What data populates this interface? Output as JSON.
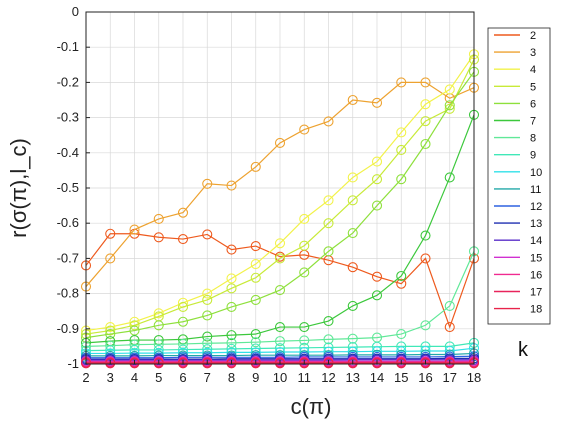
{
  "chart_data": {
    "type": "line",
    "xlabel": "c(π)",
    "ylabel": "r(σ(π),l_c)",
    "legend_title": "k",
    "legend_position": "right",
    "xlim": [
      2,
      18
    ],
    "ylim": [
      -1,
      0
    ],
    "x": [
      2,
      3,
      4,
      5,
      6,
      7,
      8,
      9,
      10,
      11,
      12,
      13,
      14,
      15,
      16,
      17,
      18
    ],
    "x_ticks": [
      2,
      3,
      4,
      5,
      6,
      7,
      8,
      9,
      10,
      11,
      12,
      13,
      14,
      15,
      16,
      17,
      18
    ],
    "y_ticks": [
      0,
      -0.1,
      -0.2,
      -0.3,
      -0.4,
      -0.5,
      -0.6,
      -0.7,
      -0.8,
      -0.9,
      -1
    ],
    "y_tick_labels": [
      "0",
      "-0.1",
      "-0.2",
      "-0.3",
      "-0.4",
      "-0.5",
      "-0.6",
      "-0.7",
      "-0.8",
      "-0.9",
      "-1"
    ],
    "grid": true,
    "marker": "open-circle",
    "series": [
      {
        "name": "2",
        "color": "#ee5a1e",
        "values": [
          -0.72,
          -0.63,
          -0.63,
          -0.64,
          -0.645,
          -0.632,
          -0.675,
          -0.665,
          -0.695,
          -0.69,
          -0.705,
          -0.725,
          -0.752,
          -0.772,
          -0.7,
          -0.895,
          -0.7
        ]
      },
      {
        "name": "3",
        "color": "#eda230",
        "values": [
          -0.78,
          -0.7,
          -0.618,
          -0.588,
          -0.57,
          -0.488,
          -0.493,
          -0.44,
          -0.372,
          -0.334,
          -0.311,
          -0.25,
          -0.258,
          -0.2,
          -0.2,
          -0.245,
          -0.215
        ]
      },
      {
        "name": "4",
        "color": "#f2f24a",
        "values": [
          -0.905,
          -0.895,
          -0.88,
          -0.856,
          -0.826,
          -0.8,
          -0.757,
          -0.716,
          -0.657,
          -0.588,
          -0.535,
          -0.47,
          -0.425,
          -0.342,
          -0.262,
          -0.22,
          -0.12
        ]
      },
      {
        "name": "5",
        "color": "#c8ea38",
        "values": [
          -0.915,
          -0.905,
          -0.89,
          -0.865,
          -0.838,
          -0.818,
          -0.785,
          -0.755,
          -0.7,
          -0.664,
          -0.6,
          -0.535,
          -0.475,
          -0.392,
          -0.31,
          -0.275,
          -0.135
        ]
      },
      {
        "name": "6",
        "color": "#8ee03c",
        "values": [
          -0.925,
          -0.915,
          -0.905,
          -0.89,
          -0.88,
          -0.862,
          -0.838,
          -0.818,
          -0.79,
          -0.74,
          -0.68,
          -0.628,
          -0.55,
          -0.475,
          -0.375,
          -0.265,
          -0.17
        ]
      },
      {
        "name": "7",
        "color": "#3cc83c",
        "values": [
          -0.94,
          -0.935,
          -0.932,
          -0.932,
          -0.93,
          -0.922,
          -0.918,
          -0.915,
          -0.895,
          -0.895,
          -0.878,
          -0.835,
          -0.805,
          -0.75,
          -0.635,
          -0.47,
          -0.292
        ]
      },
      {
        "name": "8",
        "color": "#60e898",
        "values": [
          -0.95,
          -0.948,
          -0.945,
          -0.944,
          -0.943,
          -0.941,
          -0.94,
          -0.938,
          -0.935,
          -0.933,
          -0.93,
          -0.928,
          -0.925,
          -0.915,
          -0.89,
          -0.835,
          -0.68
        ]
      },
      {
        "name": "9",
        "color": "#40e8b8",
        "values": [
          -0.962,
          -0.961,
          -0.96,
          -0.96,
          -0.959,
          -0.958,
          -0.957,
          -0.956,
          -0.955,
          -0.954,
          -0.953,
          -0.952,
          -0.951,
          -0.95,
          -0.95,
          -0.95,
          -0.94
        ]
      },
      {
        "name": "10",
        "color": "#30e0e8",
        "values": [
          -0.97,
          -0.97,
          -0.969,
          -0.969,
          -0.968,
          -0.968,
          -0.967,
          -0.967,
          -0.966,
          -0.966,
          -0.965,
          -0.965,
          -0.964,
          -0.964,
          -0.963,
          -0.963,
          -0.955
        ]
      },
      {
        "name": "11",
        "color": "#22a8a8",
        "values": [
          -0.977,
          -0.977,
          -0.977,
          -0.976,
          -0.976,
          -0.976,
          -0.976,
          -0.975,
          -0.975,
          -0.975,
          -0.975,
          -0.974,
          -0.974,
          -0.974,
          -0.973,
          -0.973,
          -0.97
        ]
      },
      {
        "name": "12",
        "color": "#2e62e0",
        "values": [
          -0.982,
          -0.982,
          -0.982,
          -0.982,
          -0.981,
          -0.981,
          -0.981,
          -0.981,
          -0.981,
          -0.98,
          -0.98,
          -0.98,
          -0.98,
          -0.98,
          -0.98,
          -0.979,
          -0.978
        ]
      },
      {
        "name": "13",
        "color": "#1e2eb0",
        "values": [
          -0.986,
          -0.986,
          -0.986,
          -0.986,
          -0.986,
          -0.986,
          -0.985,
          -0.985,
          -0.985,
          -0.985,
          -0.985,
          -0.985,
          -0.985,
          -0.985,
          -0.985,
          -0.984,
          -0.984
        ]
      },
      {
        "name": "14",
        "color": "#5a2ec8",
        "values": [
          -0.989,
          -0.989,
          -0.989,
          -0.989,
          -0.989,
          -0.989,
          -0.989,
          -0.989,
          -0.989,
          -0.989,
          -0.989,
          -0.988,
          -0.988,
          -0.988,
          -0.988,
          -0.988,
          -0.988
        ]
      },
      {
        "name": "15",
        "color": "#d030d0",
        "values": [
          -0.992,
          -0.992,
          -0.992,
          -0.992,
          -0.992,
          -0.992,
          -0.992,
          -0.992,
          -0.992,
          -0.992,
          -0.992,
          -0.992,
          -0.992,
          -0.992,
          -0.992,
          -0.992,
          -0.991
        ]
      },
      {
        "name": "16",
        "color": "#f02a90",
        "values": [
          -0.994,
          -0.994,
          -0.994,
          -0.994,
          -0.994,
          -0.994,
          -0.994,
          -0.994,
          -0.994,
          -0.994,
          -0.994,
          -0.994,
          -0.994,
          -0.994,
          -0.994,
          -0.994,
          -0.994
        ]
      },
      {
        "name": "17",
        "color": "#e8245c",
        "values": [
          -0.996,
          -0.996,
          -0.996,
          -0.996,
          -0.996,
          -0.996,
          -0.996,
          -0.996,
          -0.996,
          -0.996,
          -0.996,
          -0.996,
          -0.996,
          -0.996,
          -0.996,
          -0.996,
          -0.996
        ]
      },
      {
        "name": "18",
        "color": "#e8244a",
        "values": [
          -0.998,
          -0.998,
          -0.998,
          -0.998,
          -0.998,
          -0.998,
          -0.998,
          -0.998,
          -0.998,
          -0.998,
          -0.998,
          -0.998,
          -0.998,
          -0.998,
          -0.998,
          -0.998,
          -0.998
        ]
      }
    ]
  }
}
